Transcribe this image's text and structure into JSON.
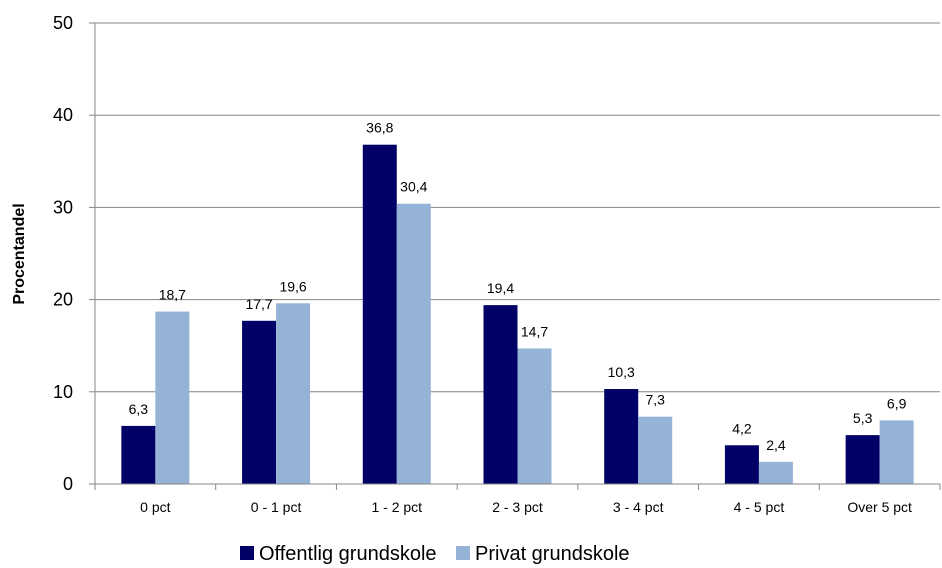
{
  "chart_data": {
    "type": "bar",
    "ylabel": "Procentandel",
    "ylim": [
      0,
      50
    ],
    "yticks": [
      0,
      10,
      20,
      30,
      40,
      50
    ],
    "grid": true,
    "legend_position": "bottom",
    "categories": [
      "0 pct",
      "0 - 1 pct",
      "1 - 2 pct",
      "2 - 3 pct",
      "3 - 4 pct",
      "4 - 5 pct",
      "Over 5 pct"
    ],
    "series": [
      {
        "name": "Offentlig grundskole",
        "color": "#000066",
        "values": [
          6.3,
          17.7,
          36.8,
          19.4,
          10.3,
          4.2,
          5.3
        ],
        "labels": [
          "6,3",
          "17,7",
          "36,8",
          "19,4",
          "10,3",
          "4,2",
          "5,3"
        ]
      },
      {
        "name": "Privat grundskole",
        "color": "#95B3D7",
        "values": [
          18.7,
          19.6,
          30.4,
          14.7,
          7.3,
          2.4,
          6.9
        ],
        "labels": [
          "18,7",
          "19,6",
          "30,4",
          "14,7",
          "7,3",
          "2,4",
          "6,9"
        ]
      }
    ]
  }
}
